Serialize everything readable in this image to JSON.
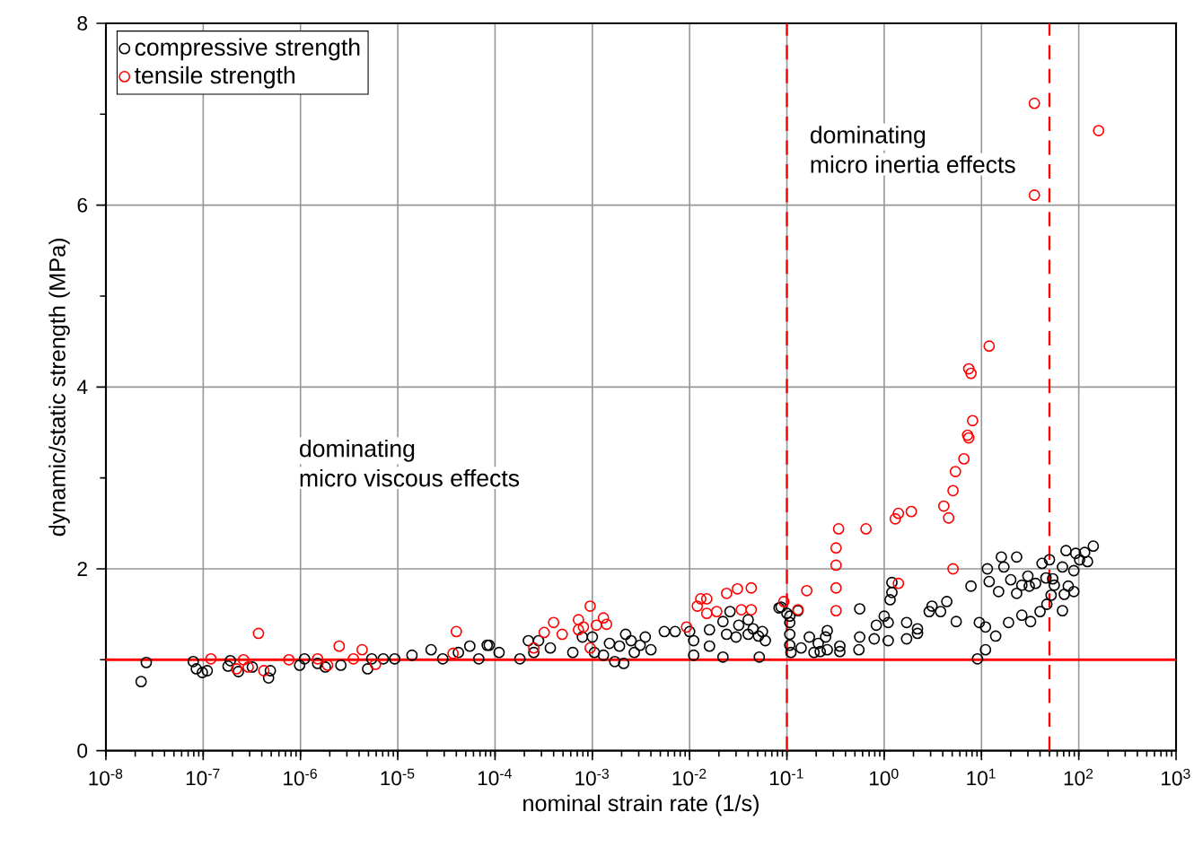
{
  "chart_data": {
    "type": "scatter",
    "xlabel": "nominal strain rate (1/s)",
    "ylabel": "dynamic/static strength (MPa)",
    "log": "x",
    "grid": true,
    "legend": "top left",
    "marker": "circle",
    "xlim": [
      1e-08,
      1000
    ],
    "ylim": [
      0,
      8
    ],
    "xticks": [
      {
        "value": 1e-08,
        "label": "10$^{-8}$"
      },
      {
        "value": 1e-07,
        "label": "10$^{-7}$"
      },
      {
        "value": 1e-06,
        "label": "10$^{-6}$"
      },
      {
        "value": 1e-05,
        "label": "10$^{-5}$"
      },
      {
        "value": 0.0001,
        "label": "10$^{-4}$"
      },
      {
        "value": 0.001,
        "label": "10$^{-3}$"
      },
      {
        "value": 0.01,
        "label": "10$^{-2}$"
      },
      {
        "value": 0.1,
        "label": "10$^{-1}$"
      },
      {
        "value": 1,
        "label": "10$^{0}$"
      },
      {
        "value": 10,
        "label": "10$^{1}$"
      },
      {
        "value": 100,
        "label": "10$^{2}$"
      },
      {
        "value": 1000,
        "label": "10$^{3}$"
      }
    ],
    "yticks": [
      0,
      2,
      4,
      6,
      8
    ],
    "series": [
      {
        "name": "compressive strength",
        "color": "#000000",
        "x": [
          2.3e-08,
          2.6e-08,
          7.9e-08,
          8.5e-08,
          9.8e-08,
          1.1e-07,
          1.8e-07,
          1.9e-07,
          2.3e-07,
          3.2e-07,
          4.7e-07,
          4.9e-07,
          9.8e-07,
          1.1e-06,
          1.5e-06,
          1.8e-06,
          2.6e-06,
          3.5e-06,
          4.9e-06,
          5.4e-06,
          7.1e-06,
          9.3e-06,
          1.4e-05,
          2.2e-05,
          2.9e-05,
          4.2e-05,
          5.5e-05,
          6.8e-05,
          8.3e-05,
          8.7e-05,
          0.00011,
          0.00018,
          0.00022,
          0.00025,
          0.00028,
          0.00037,
          0.00063,
          0.00079,
          0.001,
          0.00105,
          0.0013,
          0.0015,
          0.0017,
          0.0019,
          0.0021,
          0.0022,
          0.0025,
          0.0027,
          0.0031,
          0.0035,
          0.004,
          0.0055,
          0.0071,
          0.01,
          0.011,
          0.011,
          0.016,
          0.016,
          0.022,
          0.022,
          0.024,
          0.026,
          0.03,
          0.032,
          0.04,
          0.04,
          0.045,
          0.051,
          0.052,
          0.056,
          0.06,
          0.087,
          0.107,
          0.107,
          0.11,
          0.13,
          0.083,
          0.1,
          0.107,
          0.107,
          0.14,
          0.17,
          0.19,
          0.21,
          0.22,
          0.25,
          0.26,
          0.26,
          0.35,
          0.35,
          0.55,
          0.56,
          0.56,
          0.79,
          0.83,
          1.0,
          1.1,
          1.1,
          1.15,
          1.2,
          1.2,
          1.7,
          1.7,
          2.2,
          2.2,
          2.9,
          3.1,
          3.8,
          4.4,
          5.5,
          7.8,
          9.1,
          9.5,
          11,
          11,
          11.5,
          12,
          14,
          15,
          16,
          17,
          19,
          20,
          23,
          23,
          26,
          26,
          30,
          31,
          32,
          36,
          40,
          42,
          46,
          47,
          50,
          52,
          54,
          56,
          68,
          68,
          71,
          74,
          78,
          89,
          89,
          93,
          102,
          115,
          123,
          141
        ],
        "values": [
          0.76,
          0.97,
          0.98,
          0.9,
          0.86,
          0.88,
          0.93,
          0.99,
          0.87,
          0.92,
          0.8,
          0.88,
          0.94,
          1.01,
          0.96,
          0.92,
          0.94,
          null,
          0.9,
          1.01,
          1.01,
          1.01,
          1.05,
          1.11,
          1.01,
          1.08,
          1.15,
          1.01,
          1.16,
          1.16,
          1.08,
          1.01,
          1.21,
          1.08,
          1.21,
          1.13,
          1.08,
          1.25,
          1.25,
          1.08,
          1.05,
          1.18,
          0.98,
          1.15,
          0.96,
          1.28,
          1.21,
          1.08,
          1.16,
          1.25,
          1.11,
          1.31,
          1.31,
          1.31,
          1.21,
          1.05,
          1.33,
          1.15,
          1.03,
          1.42,
          1.28,
          1.53,
          1.25,
          1.38,
          1.44,
          1.28,
          1.34,
          1.26,
          1.03,
          1.31,
          1.21,
          1.58,
          1.48,
          1.28,
          1.08,
          1.54,
          1.57,
          1.51,
          1.41,
          1.16,
          1.13,
          1.25,
          1.08,
          1.18,
          1.09,
          1.25,
          1.32,
          1.11,
          1.15,
          1.09,
          1.11,
          1.25,
          1.56,
          1.23,
          1.38,
          1.48,
          1.21,
          1.41,
          1.66,
          1.74,
          1.85,
          1.41,
          1.23,
          1.34,
          1.29,
          1.53,
          1.59,
          1.53,
          1.64,
          1.42,
          1.81,
          1.01,
          1.41,
          1.11,
          1.36,
          2.0,
          1.86,
          1.26,
          1.75,
          2.13,
          2.02,
          1.41,
          1.88,
          2.13,
          1.73,
          1.82,
          1.49,
          1.92,
          1.81,
          1.42,
          1.84,
          1.53,
          2.06,
          1.9,
          1.61,
          2.1,
          1.71,
          1.89,
          1.82,
          1.54,
          2.02,
          1.72,
          2.2,
          1.81,
          1.75,
          1.98,
          2.17,
          2.1,
          2.18,
          2.08,
          2.25
        ]
      },
      {
        "name": "tensile strength",
        "color": "#ff0000",
        "x": [
          1.2e-07,
          2.2e-07,
          2.6e-07,
          2.9e-07,
          3.7e-07,
          4.2e-07,
          7.6e-07,
          1.5e-06,
          1.9e-06,
          2.5e-06,
          3.5e-06,
          4.3e-06,
          5.9e-06,
          3.7e-05,
          4e-05,
          0.00025,
          0.00032,
          0.0004,
          0.00049,
          0.00072,
          0.00072,
          0.00081,
          0.00095,
          0.00095,
          0.0011,
          0.0013,
          0.0014,
          0.0093,
          0.012,
          0.013,
          0.015,
          0.015,
          0.019,
          0.024,
          0.031,
          0.034,
          0.043,
          0.043,
          0.093,
          0.13,
          0.16,
          0.32,
          0.32,
          0.32,
          0.32,
          0.34,
          0.65,
          1.3,
          1.4,
          1.9,
          1.4,
          4.1,
          4.6,
          5.1,
          5.1,
          5.4,
          6.6,
          7.2,
          7.4,
          8.1,
          7.4,
          7.8,
          12,
          35,
          35,
          160
        ],
        "values": [
          1.01,
          0.9,
          1.0,
          0.92,
          1.29,
          0.88,
          1.0,
          1.01,
          0.94,
          1.15,
          1.01,
          1.11,
          0.95,
          1.07,
          1.31,
          1.13,
          1.3,
          1.41,
          1.28,
          1.44,
          1.33,
          1.36,
          1.59,
          1.13,
          1.38,
          1.46,
          1.39,
          1.36,
          1.59,
          1.67,
          1.67,
          1.51,
          1.53,
          1.73,
          1.78,
          1.55,
          1.79,
          1.55,
          1.64,
          1.55,
          1.76,
          1.54,
          1.79,
          2.04,
          2.23,
          2.44,
          2.44,
          2.55,
          2.61,
          2.63,
          1.84,
          2.69,
          2.56,
          2.0,
          2.86,
          3.07,
          3.21,
          3.47,
          3.44,
          3.63,
          4.2,
          4.15,
          4.45,
          7.12,
          6.11,
          6.82
        ]
      }
    ],
    "ref_lines": [
      {
        "axis": "y",
        "value": 1,
        "color": "#ff0000",
        "line_style": "solid"
      },
      {
        "axis": "x",
        "value": 0.1,
        "color": "#ff0000",
        "line_style": "dashed"
      },
      {
        "axis": "x",
        "value": 50,
        "color": "#ff0000",
        "line_style": "dashed"
      }
    ],
    "annotations": [
      "dominating",
      "micro viscous effects",
      "dominating",
      "micro inertia effects"
    ]
  }
}
